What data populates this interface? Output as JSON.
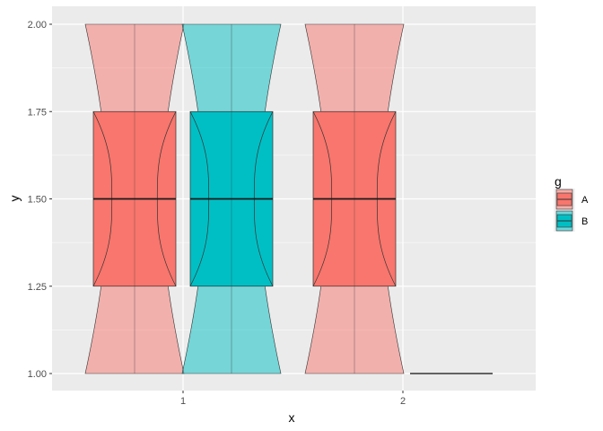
{
  "chart_data": {
    "type": "boxplot",
    "xlabel": "x",
    "ylabel": "y",
    "categories": [
      "1",
      "2"
    ],
    "ylim": [
      1.0,
      2.0
    ],
    "yticks": [
      "1.00",
      "1.25",
      "1.50",
      "1.75",
      "2.00"
    ],
    "ytick_values": [
      1.0,
      1.25,
      1.5,
      1.75,
      2.0
    ],
    "grid": true,
    "legend": {
      "title": "g",
      "position": "right",
      "entries": [
        {
          "label": "A",
          "color": "#F8766D"
        },
        {
          "label": "B",
          "color": "#00BFC4"
        }
      ]
    },
    "series": [
      {
        "group": "A",
        "x": "1",
        "color": "#F8766D",
        "box": {
          "lower": 1.25,
          "median": 1.5,
          "upper": 1.75
        },
        "violin": {
          "min": 1.0,
          "max": 2.0
        }
      },
      {
        "group": "B",
        "x": "1",
        "color": "#00BFC4",
        "box": {
          "lower": 1.25,
          "median": 1.5,
          "upper": 1.75
        },
        "violin": {
          "min": 1.0,
          "max": 2.0
        }
      },
      {
        "group": "A",
        "x": "2",
        "color": "#F8766D",
        "box": {
          "lower": 1.25,
          "median": 1.5,
          "upper": 1.75
        },
        "violin": {
          "min": 1.0,
          "max": 2.0
        }
      },
      {
        "group": "B",
        "x": "2",
        "color": "#00BFC4",
        "box": {
          "lower": 1.0,
          "median": 1.0,
          "upper": 1.0
        },
        "violin": null
      }
    ]
  }
}
